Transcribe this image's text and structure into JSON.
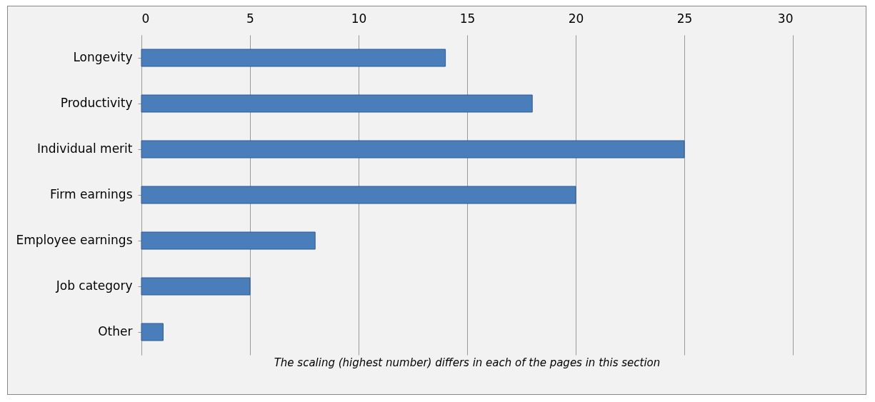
{
  "chart_data": {
    "type": "bar",
    "orientation": "horizontal",
    "categories": [
      "Longevity",
      "Productivity",
      "Individual merit",
      "Firm earnings",
      "Employee earnings",
      "Job category",
      "Other"
    ],
    "values": [
      14,
      18,
      25,
      20,
      8,
      5,
      1
    ],
    "color": "#4a7ebb",
    "xlim": [
      0,
      30
    ],
    "xticks": [
      0,
      5,
      10,
      15,
      20,
      25,
      30
    ],
    "grid": "x",
    "annotations": [
      "The scaling (highest number) differs in each of the pages in this section"
    ]
  }
}
